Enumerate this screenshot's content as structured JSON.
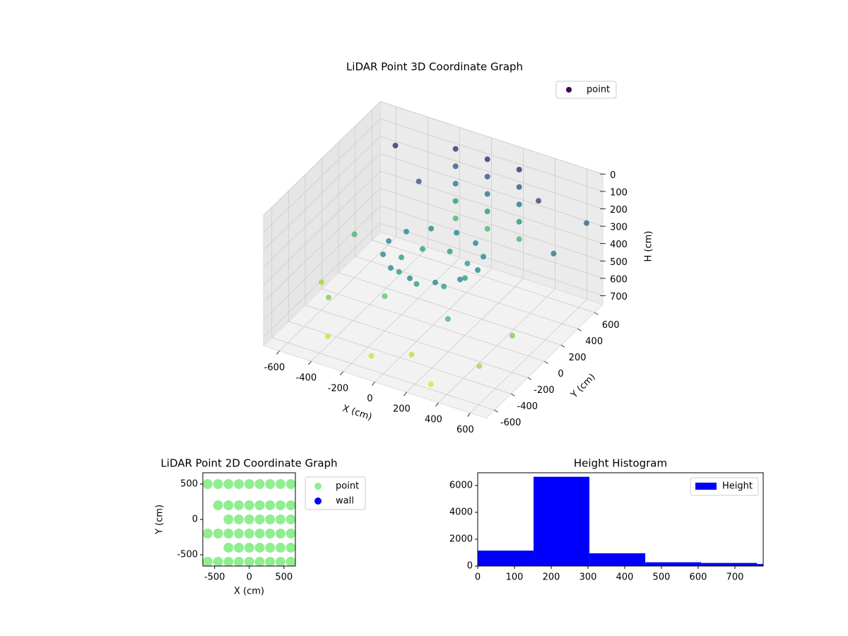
{
  "chart_data": [
    {
      "type": "scatter3d",
      "title": "LiDAR Point 3D Coordinate Graph",
      "xlabel": "X (cm)",
      "ylabel": "Y (cm)",
      "zlabel": "H (cm)",
      "colormap": "viridis",
      "zinverted": true,
      "legend": "upper right",
      "xlim": [
        -700,
        700
      ],
      "ylim": [
        -700,
        700
      ],
      "zlim": [
        0,
        750
      ],
      "xticks": [
        -600,
        -400,
        -200,
        0,
        200,
        400,
        600
      ],
      "yticks": [
        -600,
        -400,
        -200,
        0,
        200,
        400,
        600
      ],
      "zticks": [
        0,
        100,
        200,
        300,
        400,
        500,
        600,
        700
      ],
      "series": [
        {
          "name": "point",
          "color": "#440154",
          "x": [
            280,
            242,
            140,
            0,
            -140,
            -242,
            -280,
            -242,
            -140,
            0,
            140,
            242,
            200,
            141,
            0,
            -141,
            -200,
            -141,
            0,
            141,
            -200,
            -200,
            -200,
            -200,
            -200,
            0,
            0,
            0,
            0,
            0,
            200,
            200,
            200,
            200,
            200,
            -500,
            -400,
            300,
            500,
            -600,
            600,
            -300,
            400,
            -500,
            550,
            -100,
            100,
            -650,
            650,
            -200,
            250
          ],
          "y": [
            0,
            140,
            242,
            280,
            242,
            140,
            0,
            -140,
            -242,
            -280,
            -242,
            -140,
            0,
            141,
            200,
            141,
            0,
            -141,
            -200,
            -141,
            650,
            650,
            650,
            650,
            650,
            650,
            650,
            650,
            650,
            650,
            650,
            650,
            650,
            650,
            650,
            -300,
            -500,
            -600,
            -400,
            200,
            300,
            400,
            500,
            500,
            -100,
            -550,
            -450,
            -100,
            600,
            -200,
            -300
          ],
          "h": [
            350,
            350,
            350,
            350,
            350,
            350,
            350,
            350,
            350,
            350,
            350,
            350,
            420,
            420,
            420,
            420,
            420,
            420,
            420,
            420,
            100,
            200,
            300,
            400,
            500,
            100,
            200,
            300,
            400,
            500,
            100,
            200,
            300,
            400,
            500,
            600,
            700,
            720,
            650,
            500,
            300,
            200,
            150,
            100,
            600,
            700,
            680,
            650,
            250,
            550,
            500
          ]
        }
      ]
    },
    {
      "type": "scatter",
      "title": "LiDAR Point 2D Coordinate Graph",
      "xlabel": "X (cm)",
      "ylabel": "Y (cm)",
      "legend": "outside right",
      "xlim": [
        -670,
        665
      ],
      "ylim": [
        -660,
        660
      ],
      "xticks": [
        -500,
        0,
        500
      ],
      "yticks": [
        -500,
        0,
        500
      ],
      "series": [
        {
          "name": "point",
          "color": "#90ee90",
          "x": [
            -600,
            -450,
            -300,
            -150,
            0,
            150,
            300,
            450,
            600,
            -300,
            -150,
            0,
            150,
            300,
            450,
            600,
            -600,
            -450,
            -300,
            -150,
            0,
            150,
            300,
            450,
            600,
            -300,
            -150,
            0,
            150,
            300,
            450,
            600,
            -450,
            -300,
            -150,
            0,
            150,
            300,
            450,
            600,
            -600,
            -450,
            -300,
            -150,
            0,
            150,
            300,
            450,
            600
          ],
          "y": [
            -600,
            -600,
            -600,
            -600,
            -600,
            -600,
            -600,
            -600,
            -600,
            -400,
            -400,
            -400,
            -400,
            -400,
            -400,
            -400,
            -200,
            -200,
            -200,
            -200,
            -200,
            -200,
            -200,
            -200,
            -200,
            0,
            0,
            0,
            0,
            0,
            0,
            0,
            200,
            200,
            200,
            200,
            200,
            200,
            200,
            200,
            500,
            500,
            500,
            500,
            500,
            500,
            500,
            500,
            500
          ]
        },
        {
          "name": "wall",
          "color": "#0000ff",
          "x": [],
          "y": []
        }
      ]
    },
    {
      "type": "histogram",
      "title": "Height Histogram",
      "name": "Height",
      "color": "#0000ff",
      "legend": "upper right",
      "bins": [
        0,
        152,
        304,
        456,
        608,
        760,
        912
      ],
      "counts": [
        1150,
        6650,
        950,
        280,
        230,
        150
      ],
      "xlim": [
        0,
        777
      ],
      "ylim": [
        0,
        6950
      ],
      "xticks": [
        0,
        100,
        200,
        300,
        400,
        500,
        600,
        700
      ],
      "yticks": [
        0,
        2000,
        4000,
        6000
      ]
    }
  ]
}
